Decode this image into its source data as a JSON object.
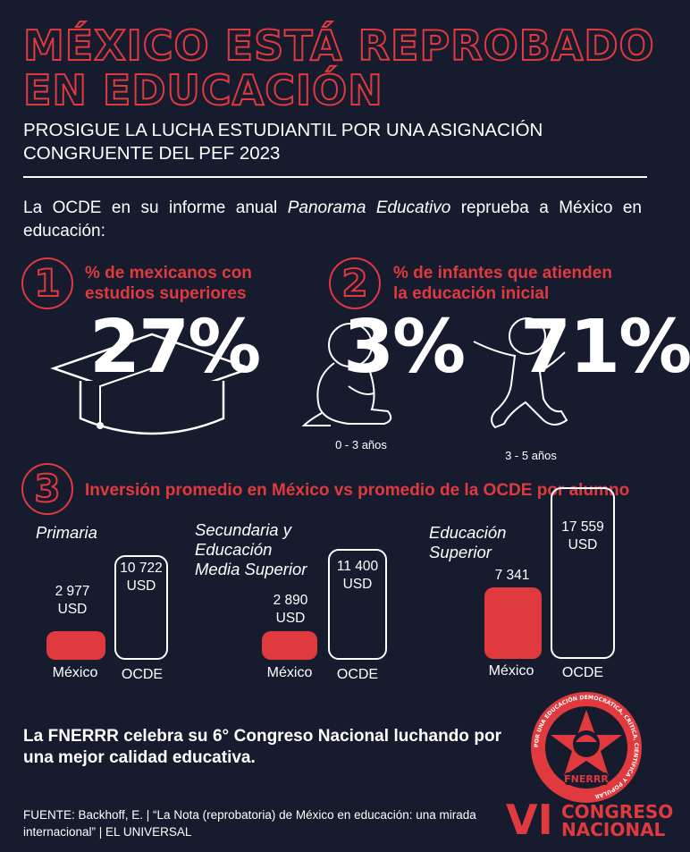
{
  "header": {
    "title_line1": "MÉXICO ESTÁ REPROBADO",
    "title_line2": "EN EDUCACIÓN",
    "subtitle": "PROSIGUE LA LUCHA ESTUDIANTIL POR UNA ASIGNACIÓN CONGRUENTE DEL PEF 2023"
  },
  "intro": {
    "before": "La OCDE en su informe anual ",
    "italic": "Panorama Educativo",
    "after": " reprueba a México en educación:"
  },
  "section1": {
    "number": "1",
    "heading_line1": "% de mexicanos con",
    "heading_line2": "estudios superiores",
    "value": "27%",
    "icon": "graduation-cap-icon"
  },
  "section2": {
    "number": "2",
    "heading_line1": "% de infantes que atienden",
    "heading_line2": "la educación inicial",
    "groups": [
      {
        "value": "3%",
        "caption": "0 - 3 años",
        "icon": "baby-icon"
      },
      {
        "value": "71%",
        "caption": "3 - 5 años",
        "icon": "running-child-icon"
      }
    ]
  },
  "section3": {
    "number": "3",
    "heading": "Inversión promedio en México vs promedio de la OCDE por alumno",
    "chart_data": {
      "type": "bar",
      "categories": [
        "Primaria",
        "Secundaria y Educación Media Superior",
        "Educación Superior"
      ],
      "series": [
        {
          "name": "México",
          "values": [
            2977,
            2890,
            7341
          ]
        },
        {
          "name": "OCDE",
          "values": [
            10722,
            11400,
            17559
          ]
        }
      ],
      "unit": "USD",
      "groups": [
        {
          "label_lines": [
            "Primaria"
          ],
          "mexico_label": "2 977",
          "ocde_label": "10 722"
        },
        {
          "label_lines": [
            "Secundaria y",
            "Educación",
            "Media Superior"
          ],
          "mexico_label": "2 890",
          "ocde_label": "11 400"
        },
        {
          "label_lines": [
            "Educación",
            "Superior"
          ],
          "mexico_label": "7 341",
          "ocde_label": "17 559"
        }
      ]
    }
  },
  "closing": "La FNERRR celebra su 6° Congreso Nacional luchando por una mejor calidad educativa.",
  "source": "FUENTE: Backhoff, E. | “La Nota (reprobatoria) de México en educación: una mirada internacional” | EL UNIVERSAL",
  "logo": {
    "ring_text": "POR UNA EDUCACIÓN DEMOCRÁTICA, CRÍTICA, CIENTÍFICA Y POPULAR",
    "name": "FNERRR",
    "roman": "VI",
    "congreso_line1": "CONGRESO",
    "congreso_line2": "NACIONAL"
  },
  "colors": {
    "background": "#161b2e",
    "accent": "#e0393e",
    "text": "#ffffff"
  }
}
